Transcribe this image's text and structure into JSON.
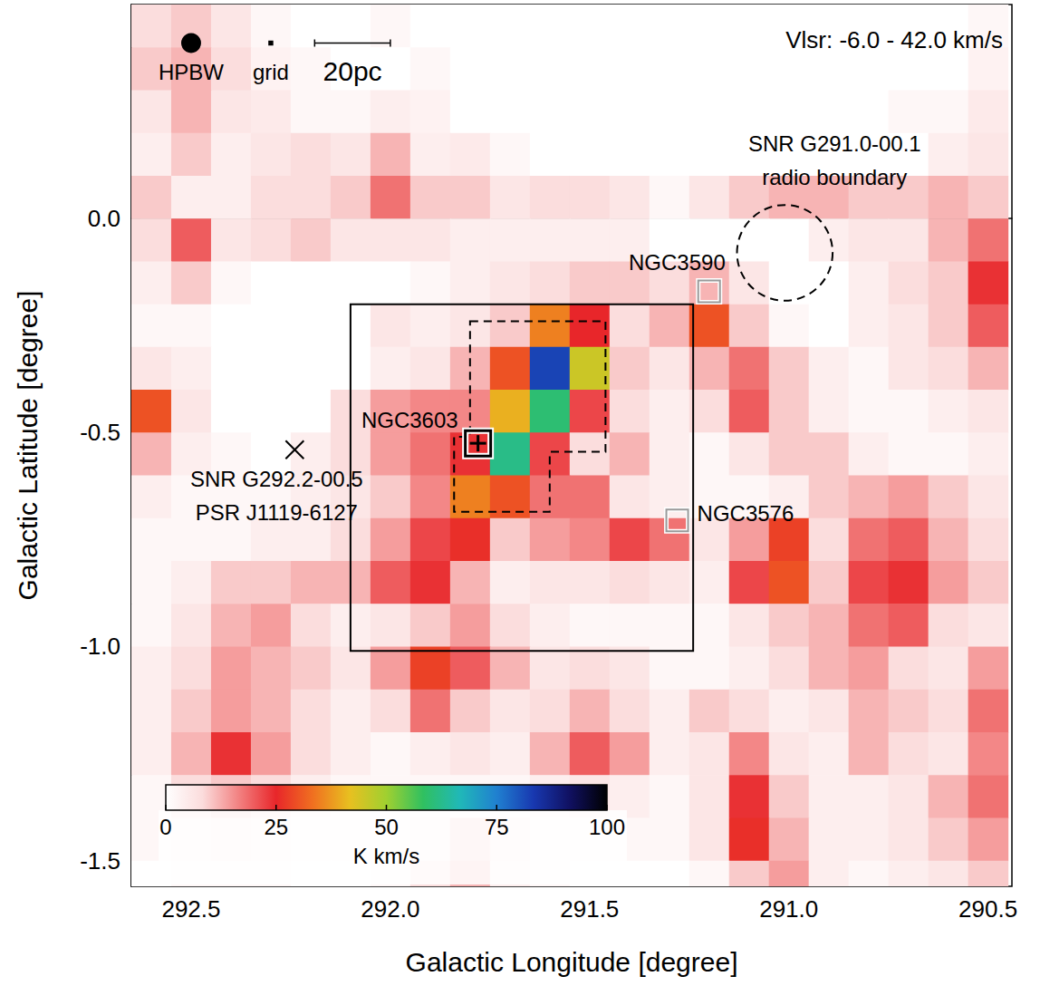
{
  "chart_data": {
    "type": "heatmap",
    "annotation": "Vlsr: -6.0 - 42.0 km/s",
    "x_label": "Galactic Longitude [degree]",
    "y_label": "Galactic Latitude [degree]",
    "xlim": [
      292.65,
      290.44
    ],
    "ylim": [
      -1.56,
      0.5
    ],
    "xticks": [
      292.5,
      {
        "value": 292,
        "label": "292.0"
      },
      291.5,
      {
        "value": 291,
        "label": "291.0"
      },
      290.5
    ],
    "yticks": [
      -1.5,
      {
        "value": -1,
        "label": "-1.0"
      },
      -0.5,
      {
        "value": 0,
        "label": "0.0"
      }
    ],
    "grid": false,
    "x": [
      292.6,
      292.5,
      292.4,
      292.3,
      292.2,
      292.1,
      292.0,
      291.9,
      291.8,
      291.7,
      291.6,
      291.5,
      291.4,
      291.3,
      291.2,
      291.1,
      291.0,
      290.9,
      290.8,
      290.7,
      290.6,
      290.5
    ],
    "y": [
      0.45,
      0.35,
      0.25,
      0.15,
      0.05,
      -0.05,
      -0.15,
      -0.25,
      -0.35,
      -0.45,
      -0.55,
      -0.65,
      -0.75,
      -0.85,
      -0.95,
      -1.05,
      -1.15,
      -1.25,
      -1.35,
      -1.45,
      -1.55
    ],
    "values": [
      [
        8,
        10,
        6,
        2,
        0,
        0,
        2,
        0,
        0,
        0,
        0,
        0,
        0,
        0,
        0,
        0,
        0,
        0,
        0,
        0,
        0,
        2
      ],
      [
        10,
        12,
        8,
        3,
        2,
        0,
        0,
        2,
        0,
        0,
        0,
        0,
        0,
        0,
        0,
        0,
        0,
        0,
        0,
        0,
        0,
        3
      ],
      [
        6,
        12,
        6,
        5,
        2,
        2,
        4,
        3,
        0,
        0,
        0,
        0,
        0,
        0,
        0,
        0,
        0,
        0,
        0,
        2,
        2,
        5
      ],
      [
        4,
        10,
        4,
        6,
        8,
        6,
        12,
        4,
        5,
        2,
        0,
        0,
        0,
        0,
        0,
        0,
        0,
        0,
        0,
        0,
        4,
        6
      ],
      [
        10,
        4,
        4,
        8,
        8,
        10,
        18,
        10,
        10,
        6,
        8,
        8,
        6,
        2,
        6,
        10,
        12,
        12,
        10,
        10,
        12,
        10
      ],
      [
        8,
        20,
        6,
        8,
        10,
        6,
        6,
        6,
        4,
        4,
        4,
        4,
        4,
        0,
        0,
        0,
        0,
        4,
        6,
        6,
        12,
        18
      ],
      [
        4,
        10,
        2,
        0,
        0,
        0,
        0,
        2,
        4,
        6,
        8,
        10,
        10,
        8,
        12,
        6,
        0,
        0,
        4,
        8,
        10,
        24
      ],
      [
        2,
        2,
        0,
        0,
        0,
        0,
        6,
        4,
        6,
        10,
        35,
        25,
        8,
        12,
        30,
        10,
        2,
        0,
        4,
        6,
        10,
        20
      ],
      [
        6,
        4,
        0,
        0,
        0,
        0,
        4,
        6,
        12,
        30,
        82,
        45,
        10,
        6,
        12,
        18,
        10,
        4,
        2,
        6,
        8,
        12
      ],
      [
        30,
        6,
        0,
        0,
        0,
        8,
        14,
        16,
        16,
        40,
        60,
        22,
        8,
        4,
        8,
        20,
        10,
        4,
        2,
        2,
        4,
        6
      ],
      [
        12,
        4,
        2,
        0,
        4,
        8,
        14,
        18,
        24,
        62,
        22,
        8,
        12,
        4,
        2,
        6,
        10,
        10,
        4,
        2,
        2,
        4
      ],
      [
        4,
        2,
        2,
        2,
        4,
        6,
        10,
        16,
        35,
        30,
        18,
        18,
        6,
        4,
        2,
        2,
        4,
        10,
        12,
        14,
        10,
        6
      ],
      [
        2,
        2,
        2,
        4,
        4,
        8,
        14,
        22,
        26,
        10,
        14,
        16,
        22,
        18,
        6,
        14,
        28,
        8,
        18,
        20,
        12,
        8
      ],
      [
        2,
        4,
        10,
        10,
        12,
        12,
        20,
        24,
        12,
        4,
        6,
        6,
        8,
        6,
        4,
        22,
        30,
        10,
        22,
        24,
        14,
        10
      ],
      [
        2,
        6,
        12,
        14,
        8,
        4,
        6,
        10,
        14,
        8,
        4,
        2,
        2,
        2,
        2,
        6,
        10,
        12,
        18,
        20,
        8,
        6
      ],
      [
        4,
        8,
        14,
        12,
        10,
        6,
        14,
        28,
        20,
        12,
        6,
        8,
        6,
        2,
        2,
        4,
        8,
        12,
        14,
        8,
        6,
        14
      ],
      [
        4,
        10,
        14,
        12,
        8,
        4,
        8,
        18,
        10,
        6,
        8,
        12,
        8,
        4,
        10,
        8,
        4,
        6,
        12,
        10,
        8,
        18
      ],
      [
        4,
        12,
        24,
        14,
        8,
        4,
        2,
        4,
        6,
        4,
        12,
        20,
        14,
        4,
        6,
        16,
        6,
        4,
        12,
        8,
        6,
        16
      ],
      [
        2,
        8,
        10,
        8,
        4,
        2,
        2,
        2,
        2,
        2,
        4,
        6,
        4,
        2,
        6,
        24,
        10,
        4,
        4,
        6,
        12,
        18
      ],
      [
        2,
        4,
        6,
        4,
        2,
        2,
        2,
        4,
        10,
        6,
        2,
        2,
        2,
        2,
        6,
        26,
        12,
        4,
        4,
        6,
        10,
        14
      ],
      [
        0,
        2,
        2,
        2,
        0,
        0,
        2,
        8,
        12,
        4,
        2,
        0,
        0,
        0,
        2,
        10,
        14,
        4,
        2,
        4,
        6,
        10
      ]
    ],
    "colorbar": {
      "range": [
        0,
        100
      ],
      "ticks": [
        0,
        25,
        50,
        75,
        100
      ],
      "label": "K km/s"
    },
    "beam": {
      "label": "HPBW",
      "l": 292.5,
      "b": 0.41,
      "diameter": 0.05
    },
    "pixel": {
      "label": "grid",
      "l": 292.3,
      "b": 0.41,
      "size": 0.0125
    },
    "scale_bar": {
      "label": "20pc",
      "l": [
        292.19,
        292.0
      ],
      "b": 0.41
    },
    "objects": [
      {
        "label": [
          "NGC3590"
        ],
        "l": 291.2,
        "b": -0.17,
        "marker": "square"
      },
      {
        "label": [
          "NGC3603"
        ],
        "l": 291.78,
        "b": -0.525,
        "marker": "square_cross"
      },
      {
        "label": [
          "NGC3576"
        ],
        "l": 291.28,
        "b": -0.705,
        "marker": "square"
      },
      {
        "label": [
          "SNR G292.2-00.5",
          "PSR J1119-6127"
        ],
        "l": 292.24,
        "b": -0.54,
        "marker": "x"
      },
      {
        "label": [
          "SNR G291.0-00.1",
          "radio boundary"
        ],
        "l": 291.01,
        "b": -0.08,
        "radius": 0.12,
        "marker": "circle",
        "line_style": "dashed"
      }
    ],
    "boxes": [
      {
        "points": [
          [
            292.1,
            -0.2
          ],
          [
            291.24,
            -0.2
          ],
          [
            291.24,
            -1.01
          ],
          [
            292.1,
            -1.01
          ]
        ],
        "line_style": "solid"
      },
      {
        "points": [
          [
            291.8,
            -0.24
          ],
          [
            291.46,
            -0.24
          ],
          [
            291.46,
            -0.545
          ],
          [
            291.6,
            -0.545
          ],
          [
            291.6,
            -0.685
          ],
          [
            291.84,
            -0.685
          ],
          [
            291.84,
            -0.51
          ],
          [
            291.8,
            -0.51
          ]
        ],
        "line_style": "dashed"
      }
    ]
  }
}
